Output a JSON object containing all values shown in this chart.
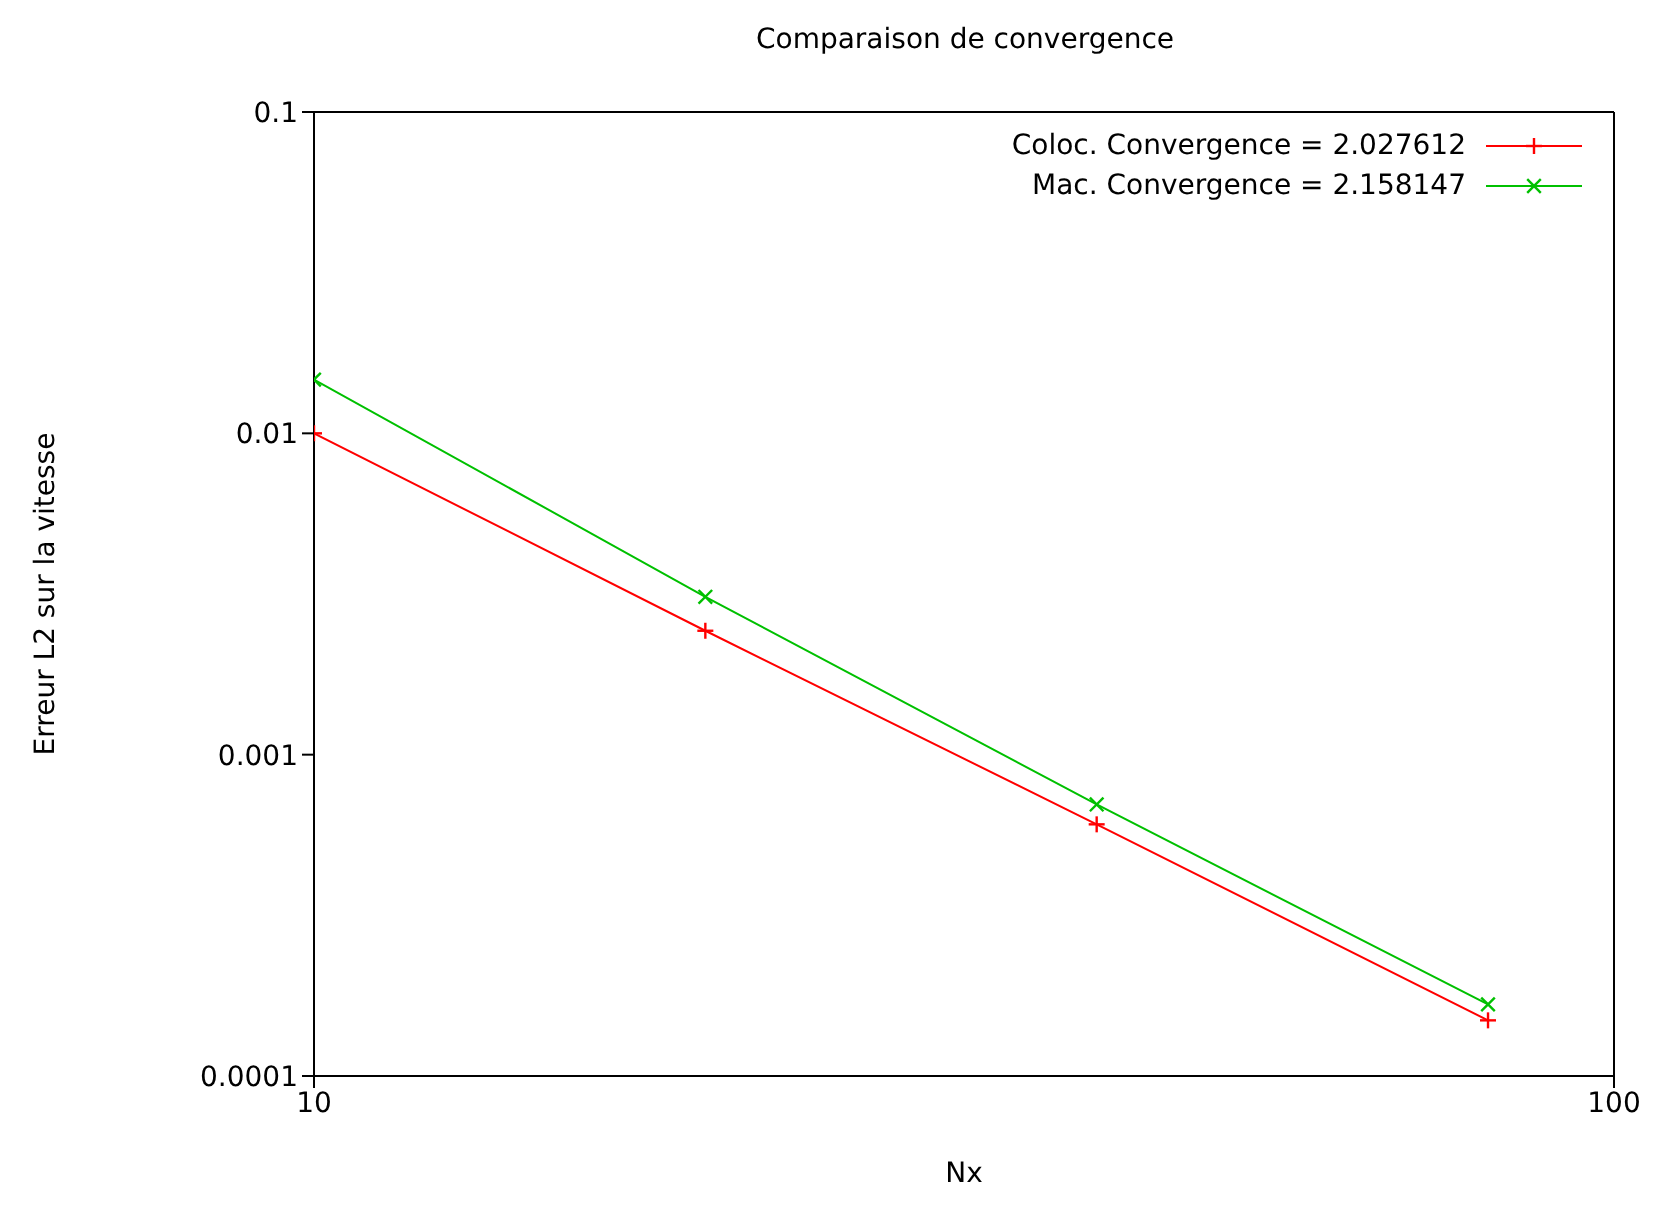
{
  "chart_data": {
    "type": "line",
    "title": "Comparaison de convergence",
    "xlabel": "Nx",
    "ylabel": "Erreur L2 sur la vitesse",
    "x": [
      10,
      20,
      40,
      80
    ],
    "series": [
      {
        "name": "Coloc. Convergence = 2.027612",
        "color": "#ff0000",
        "values": [
          0.01,
          0.00243,
          0.000607,
          0.000149
        ]
      },
      {
        "name": "Mac. Convergence = 2.158147",
        "color": "#00c000",
        "values": [
          0.0147,
          0.0031,
          0.0007,
          0.000167
        ]
      }
    ],
    "log": "xy",
    "xlim": [
      10,
      100
    ],
    "xticks": [
      10,
      100
    ],
    "ylim": [
      0.0001,
      0.1
    ],
    "yticks": [
      0.0001,
      0.001,
      0.01,
      0.1
    ],
    "grid": false,
    "legend": "top right",
    "marker": "cross",
    "line_style": "solid"
  }
}
